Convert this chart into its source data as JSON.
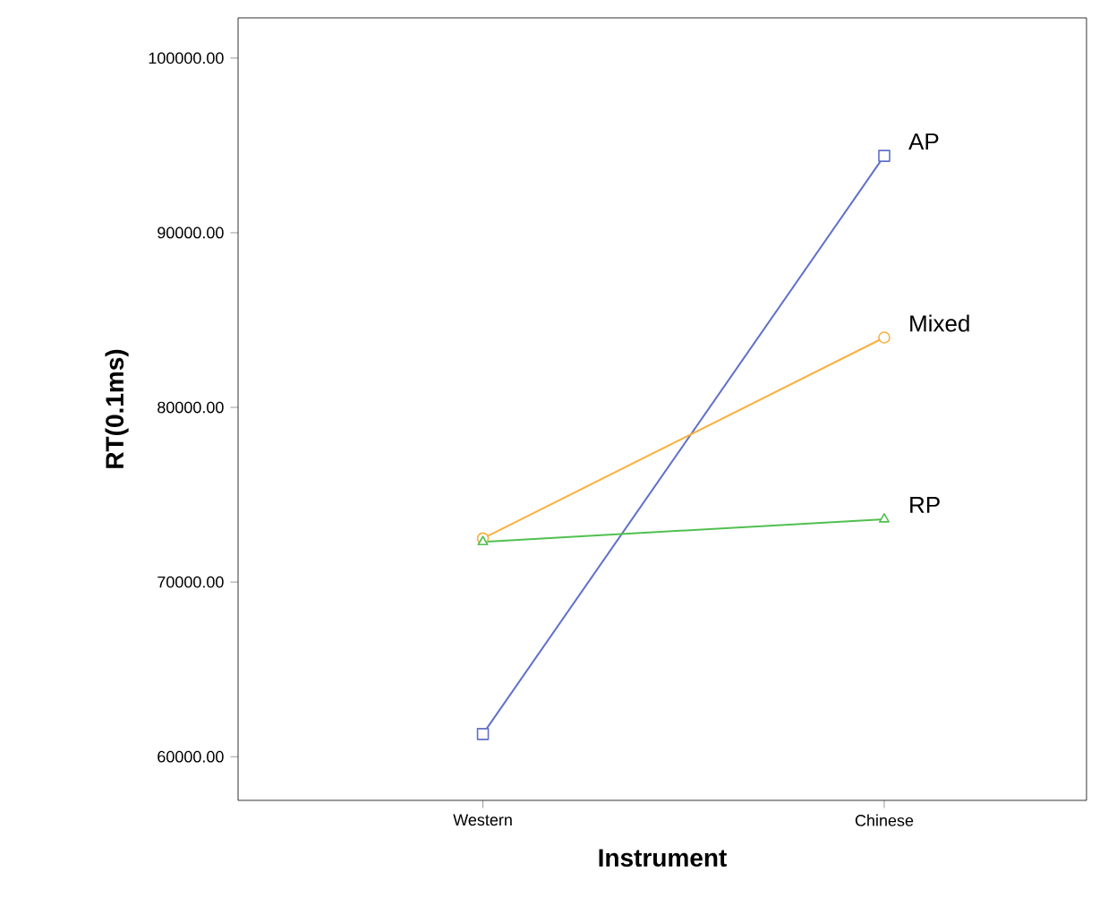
{
  "chart_data": {
    "type": "line",
    "xlabel": "Instrument",
    "ylabel": "RT(0.1ms)",
    "categories": [
      "Western",
      "Chinese"
    ],
    "ylim": [
      57500,
      102300
    ],
    "yticks": [
      {
        "value": 60000,
        "label": "60000.00"
      },
      {
        "value": 70000,
        "label": "70000.00"
      },
      {
        "value": 80000,
        "label": "80000.00"
      },
      {
        "value": 90000,
        "label": "90000.00"
      },
      {
        "value": 100000,
        "label": "100000.00"
      }
    ],
    "line_style": "solid",
    "series": [
      {
        "name": "AP",
        "color": "#6070c8",
        "marker": "square",
        "values": [
          61300,
          94400
        ]
      },
      {
        "name": "Mixed",
        "color": "#f8b040",
        "marker": "circle",
        "values": [
          72500,
          84000
        ]
      },
      {
        "name": "RP",
        "color": "#50c050",
        "marker": "triangle",
        "values": [
          72300,
          73600
        ]
      }
    ]
  }
}
